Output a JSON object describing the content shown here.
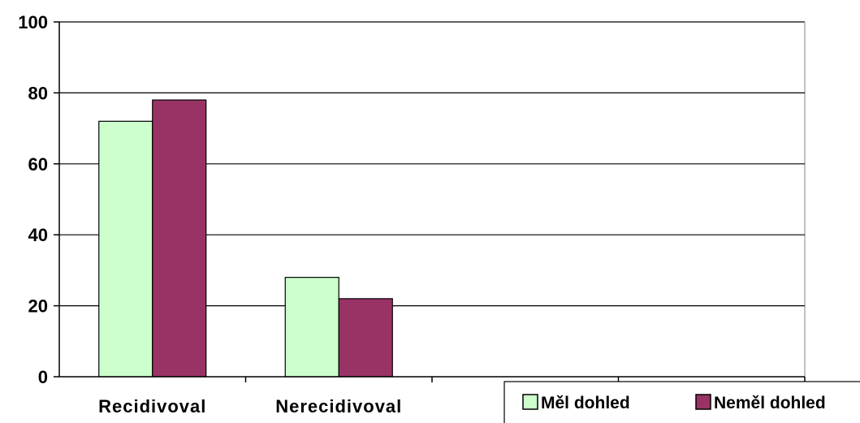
{
  "chart_data": {
    "type": "bar",
    "categories": [
      "Recidivoval",
      "Nerecidivoval"
    ],
    "series": [
      {
        "name": "Měl dohled",
        "values": [
          72,
          28
        ],
        "color": "#ccffcc"
      },
      {
        "name": "Neměl dohled",
        "values": [
          78,
          22
        ],
        "color": "#993366"
      }
    ],
    "ylim": [
      0,
      100
    ],
    "yticks": [
      0,
      20,
      40,
      60,
      80,
      100
    ],
    "category_slots": 4,
    "grid": true,
    "legend_position": "bottom-right",
    "title": "",
    "xlabel": "",
    "ylabel": ""
  }
}
